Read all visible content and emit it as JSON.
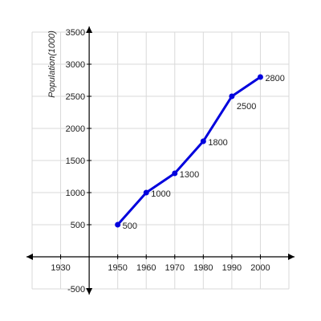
{
  "chart_data": {
    "type": "line",
    "title": "",
    "xlabel": "",
    "ylabel": "Population(1000)",
    "x": [
      1950,
      1960,
      1970,
      1980,
      1990,
      2000
    ],
    "series": [
      {
        "values": [
          500,
          1000,
          1300,
          1800,
          2500,
          2800
        ],
        "color": "#0000dd"
      }
    ],
    "data_labels": [
      "500",
      "1000",
      "1300",
      "1800",
      "2500",
      "2800"
    ],
    "x_ticks": [
      "1930",
      "1950",
      "1960",
      "1970",
      "1980",
      "1990",
      "2000"
    ],
    "y_ticks": [
      "-500",
      "500",
      "1000",
      "1500",
      "2000",
      "2500",
      "3000",
      "3500"
    ],
    "xlim": [
      1920,
      2010
    ],
    "ylim": [
      -500,
      3500
    ],
    "grid": true,
    "legend": "none"
  }
}
